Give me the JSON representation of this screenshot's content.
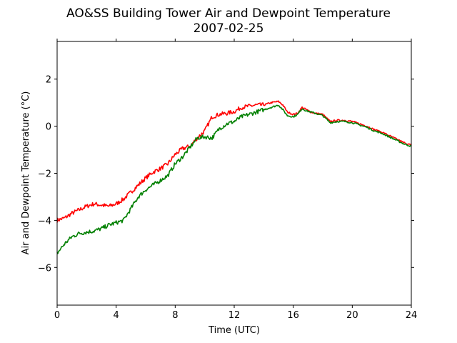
{
  "chart_data": {
    "type": "line",
    "title": "AO&SS Building Tower Air and Dewpoint Temperature",
    "subtitle": "2007-02-25",
    "xlabel": "Time (UTC)",
    "ylabel": "Air and Dewpoint Temperature (°C)",
    "xlim": [
      0,
      24
    ],
    "ylim": [
      -7.6,
      3.6
    ],
    "xticks": [
      0,
      4,
      8,
      12,
      16,
      20,
      24
    ],
    "xtick_labels": [
      "0",
      "4",
      "8",
      "12",
      "16",
      "20",
      "24"
    ],
    "yticks": [
      -6,
      -4,
      -2,
      0,
      2
    ],
    "ytick_labels": [
      "−6",
      "−4",
      "−2",
      "0",
      "2"
    ],
    "grid": false,
    "series": [
      {
        "color": "#ff0000",
        "x": [
          0,
          0.5,
          1,
          1.5,
          2,
          2.5,
          3,
          3.5,
          4,
          4.5,
          5,
          5.5,
          6,
          6.5,
          7,
          7.5,
          8,
          8.5,
          9,
          9.5,
          10,
          10.5,
          11,
          11.5,
          12,
          12.5,
          13,
          13.5,
          14,
          14.5,
          15,
          15.3,
          15.6,
          16,
          16.3,
          16.6,
          16.9,
          17.2,
          17.5,
          18,
          18.5,
          19,
          19.5,
          20,
          20.5,
          21,
          21.5,
          22,
          22.5,
          23,
          23.5,
          24
        ],
        "y": [
          -4.0,
          -3.9,
          -3.7,
          -3.55,
          -3.4,
          -3.3,
          -3.35,
          -3.4,
          -3.3,
          -3.1,
          -2.8,
          -2.5,
          -2.2,
          -1.95,
          -1.8,
          -1.6,
          -1.2,
          -0.95,
          -0.85,
          -0.5,
          -0.2,
          0.4,
          0.5,
          0.55,
          0.62,
          0.8,
          0.85,
          0.9,
          0.9,
          1.0,
          1.05,
          0.9,
          0.6,
          0.5,
          0.55,
          0.8,
          0.7,
          0.6,
          0.55,
          0.5,
          0.2,
          0.25,
          0.25,
          0.2,
          0.1,
          0.0,
          -0.15,
          -0.25,
          -0.4,
          -0.55,
          -0.7,
          -0.8
        ]
      },
      {
        "color": "#008000",
        "x": [
          0,
          0.5,
          1,
          1.5,
          2,
          2.5,
          3,
          3.5,
          4,
          4.5,
          5,
          5.5,
          6,
          6.5,
          7,
          7.5,
          8,
          8.5,
          9,
          9.5,
          10,
          10.5,
          11,
          11.5,
          12,
          12.5,
          13,
          13.5,
          14,
          14.5,
          15,
          15.3,
          15.6,
          16,
          16.3,
          16.6,
          16.9,
          17.2,
          17.5,
          18,
          18.5,
          19,
          19.5,
          20,
          20.5,
          21,
          21.5,
          22,
          22.5,
          23,
          23.5,
          24
        ],
        "y": [
          -5.4,
          -5.0,
          -4.7,
          -4.55,
          -4.5,
          -4.45,
          -4.35,
          -4.2,
          -4.1,
          -4.0,
          -3.5,
          -3.0,
          -2.7,
          -2.5,
          -2.3,
          -2.1,
          -1.6,
          -1.3,
          -0.9,
          -0.5,
          -0.45,
          -0.5,
          -0.1,
          0.1,
          0.2,
          0.4,
          0.5,
          0.6,
          0.7,
          0.8,
          0.9,
          0.7,
          0.45,
          0.4,
          0.5,
          0.75,
          0.65,
          0.6,
          0.55,
          0.45,
          0.15,
          0.2,
          0.2,
          0.15,
          0.05,
          -0.05,
          -0.2,
          -0.3,
          -0.45,
          -0.6,
          -0.75,
          -0.85
        ]
      }
    ]
  }
}
